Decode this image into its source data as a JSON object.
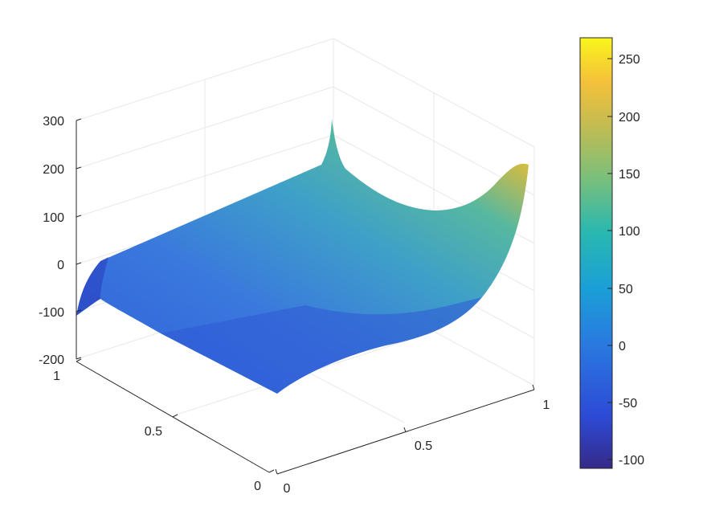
{
  "chart_data": {
    "type": "surface",
    "title": "",
    "xlabel": "",
    "ylabel": "",
    "zlabel": "",
    "x_range": [
      0,
      1
    ],
    "y_range": [
      0,
      1
    ],
    "zlim": [
      -200,
      300
    ],
    "x_ticks": [
      "0",
      "0.5",
      "1"
    ],
    "y_ticks": [
      "0",
      "0.5",
      "1"
    ],
    "z_ticks": [
      "-200",
      "-100",
      "0",
      "100",
      "200",
      "300"
    ],
    "grid": true,
    "colormap": "parula",
    "colorbar": {
      "range": [
        -110,
        265
      ],
      "ticks": [
        "-100",
        "-50",
        "0",
        "50",
        "100",
        "150",
        "200",
        "250"
      ]
    },
    "corner_values": [
      {
        "x": 0,
        "y": 0,
        "z": -45
      },
      {
        "x": 1,
        "y": 0,
        "z": -50
      },
      {
        "x": 1,
        "y": 1,
        "z": 265
      },
      {
        "x": 0,
        "y": 1,
        "z": -105
      }
    ],
    "peak": {
      "x": 0.45,
      "y": 1,
      "z": 200
    }
  }
}
